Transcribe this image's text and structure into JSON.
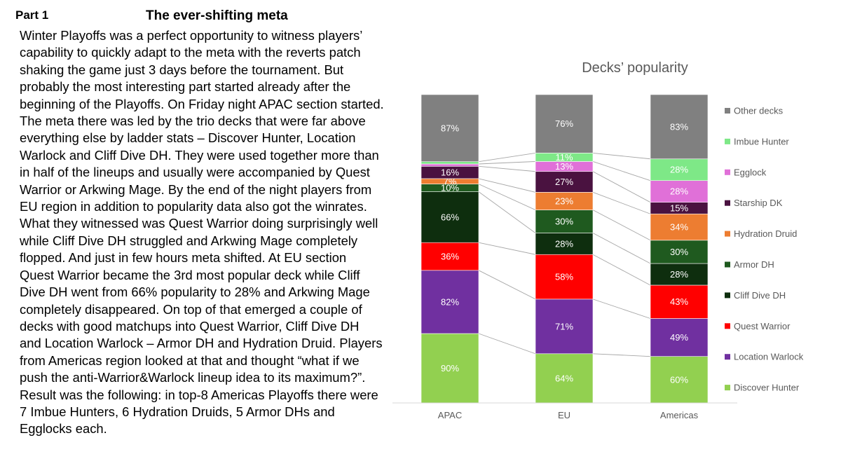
{
  "heading": {
    "part": "Part 1",
    "title": "The ever-shifting meta"
  },
  "body": "Winter Playoffs was a perfect opportunity to witness players’\ncapability to quickly adapt to the meta with the reverts patch\nshaking the game just 3 days before the tournament. But\nprobably the most interesting part started already after the\nbeginning of the Playoffs. On Friday night APAC section started.\nThe meta there was led by the trio decks that were far above\neverything else by ladder stats – Discover Hunter, Location\nWarlock and Cliff Dive DH. They were used together more than\nin half of the lineups and usually were accompanied by Quest\nWarrior or Arkwing Mage. By the end of the night players from\nEU region in addition to popularity data also got the winrates.\nWhat they witnessed was Quest Warrior doing surprisingly well\nwhile Cliff Dive DH struggled and Arkwing Mage completely\nflopped. And just in few hours meta shifted. At EU section\nQuest Warrior became the 3rd most popular deck while Cliff\nDive DH went from 66% popularity to 28% and Arkwing Mage\ncompletely disappeared. On top of that emerged a couple of\ndecks with good matchups into Quest Warrior, Cliff Dive DH\nand Location Warlock – Armor DH and Hydration Druid. Players\nfrom Americas region looked at that and thought “what if we\npush the anti-Warrior&Warlock lineup idea to its maximum?”.\nResult was the following: in top-8 Americas Playoffs there were\n7 Imbue Hunters, 6 Hydration Druids, 5 Armor DHs and\nEgglocks each.",
  "chart_data": {
    "type": "bar",
    "stacked": true,
    "title": "Decks’ popularity",
    "categories": [
      "APAC",
      "EU",
      "Americas"
    ],
    "series": [
      {
        "name": "Discover Hunter",
        "color": "#92D050",
        "values": [
          90,
          64,
          60
        ],
        "labels": [
          "90%",
          "64%",
          "60%"
        ]
      },
      {
        "name": "Location Warlock",
        "color": "#7030A0",
        "values": [
          82,
          71,
          49
        ],
        "labels": [
          "82%",
          "71%",
          "49%"
        ]
      },
      {
        "name": "Quest Warrior",
        "color": "#FF0000",
        "values": [
          36,
          58,
          43
        ],
        "labels": [
          "36%",
          "58%",
          "43%"
        ]
      },
      {
        "name": "Cliff Dive DH",
        "color": "#0E2E0E",
        "values": [
          66,
          28,
          28
        ],
        "labels": [
          "66%",
          "28%",
          "28%"
        ]
      },
      {
        "name": "Armor DH",
        "color": "#1F5A1F",
        "values": [
          10,
          30,
          30
        ],
        "labels": [
          "10%",
          "30%",
          "30%"
        ]
      },
      {
        "name": "Hydration Druid",
        "color": "#ED7D31",
        "values": [
          7,
          23,
          34
        ],
        "labels": [
          "7%",
          "23%",
          "34%"
        ]
      },
      {
        "name": "Starship DK",
        "color": "#4A1240",
        "values": [
          16,
          27,
          15
        ],
        "labels": [
          "16%",
          "27%",
          "15%"
        ]
      },
      {
        "name": "Egglock",
        "color": "#E070D8",
        "values": [
          3,
          13,
          28
        ],
        "labels": [
          "",
          "13%",
          "28%"
        ]
      },
      {
        "name": "Imbue Hunter",
        "color": "#7EE887",
        "values": [
          3,
          11,
          28
        ],
        "labels": [
          "",
          "11%",
          "28%"
        ]
      },
      {
        "name": "Other decks",
        "color": "#808080",
        "values": [
          87,
          76,
          83
        ],
        "labels": [
          "87%",
          "76%",
          "83%"
        ]
      }
    ],
    "legend_order": [
      "Other decks",
      "Imbue Hunter",
      "Egglock",
      "Starship DK",
      "Hydration Druid",
      "Armor DH",
      "Cliff Dive DH",
      "Quest Warrior",
      "Location Warlock",
      "Discover Hunter"
    ],
    "legend_position": "right",
    "grid": false
  }
}
